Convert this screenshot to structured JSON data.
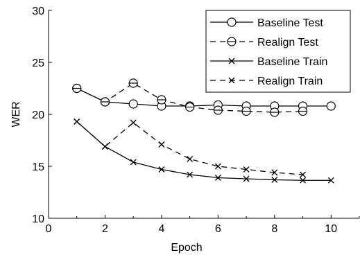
{
  "chart_data": {
    "type": "line",
    "xlabel": "Epoch",
    "ylabel": "WER",
    "xlim": [
      0,
      11
    ],
    "ylim": [
      10,
      30
    ],
    "xticks": [
      0,
      2,
      4,
      6,
      8,
      10
    ],
    "yticks": [
      10,
      15,
      20,
      25,
      30
    ],
    "grid": false,
    "legend_position": "top-right",
    "series": [
      {
        "name": "Baseline Test",
        "line_style": "solid",
        "marker": "circle",
        "color": "#000000",
        "x": [
          1,
          2,
          3,
          4,
          5,
          6,
          7,
          8,
          9,
          10
        ],
        "values": [
          22.5,
          21.2,
          21.0,
          20.8,
          20.8,
          20.9,
          20.8,
          20.8,
          20.8,
          20.8
        ]
      },
      {
        "name": "Realign Test",
        "line_style": "dashed",
        "marker": "circle-hbar",
        "color": "#000000",
        "x": [
          1,
          2,
          3,
          4,
          5,
          6,
          7,
          8,
          9
        ],
        "values": [
          22.5,
          21.2,
          23.0,
          21.4,
          20.7,
          20.4,
          20.3,
          20.2,
          20.3
        ]
      },
      {
        "name": "Baseline Train",
        "line_style": "solid",
        "marker": "x",
        "color": "#000000",
        "x": [
          1,
          2,
          3,
          4,
          5,
          6,
          7,
          8,
          9,
          10
        ],
        "values": [
          19.3,
          16.9,
          15.4,
          14.7,
          14.2,
          13.9,
          13.8,
          13.7,
          13.65,
          13.65
        ]
      },
      {
        "name": "Realign Train",
        "line_style": "dashed",
        "marker": "x",
        "color": "#000000",
        "x": [
          1,
          2,
          3,
          4,
          5,
          6,
          7,
          8,
          9
        ],
        "values": [
          19.3,
          16.9,
          19.2,
          17.1,
          15.7,
          15.0,
          14.7,
          14.4,
          14.2
        ]
      }
    ]
  }
}
